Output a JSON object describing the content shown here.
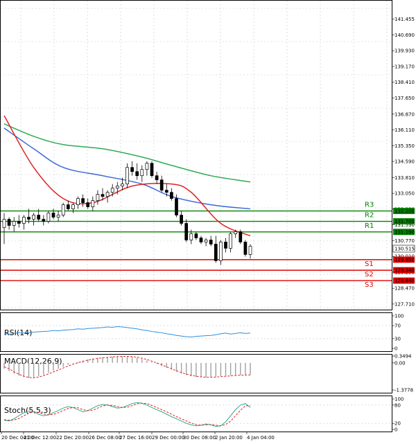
{
  "chart_data": {
    "type": "candlestick",
    "price_axis": {
      "ylim": [
        127.54,
        142.11
      ],
      "ticks": [
        "141.455",
        "140.690",
        "139.930",
        "139.170",
        "138.410",
        "137.650",
        "136.870",
        "136.110",
        "135.350",
        "134.590",
        "133.810",
        "133.050",
        "132.290",
        "131.530",
        "130.770",
        "130.010",
        "129.250",
        "128.470",
        "127.710"
      ]
    },
    "time_labels": [
      "20 Dec 04:00",
      "21 Dec 12:00",
      "22 Dec 20:00",
      "26 Dec 08:00",
      "27 Dec 16:00",
      "29 Dec 00:00",
      "30 Dec 08:00",
      "2 Jan 20:00",
      "4 Jan 04:00"
    ],
    "current_price": "130.515",
    "levels": [
      {
        "name": "R3",
        "value": 132.2,
        "label": "132.200",
        "color": "#008000"
      },
      {
        "name": "R2",
        "value": 131.7,
        "label": "131.700",
        "color": "#008000"
      },
      {
        "name": "R1",
        "value": 131.19,
        "label": "131.190",
        "color": "#008000"
      },
      {
        "name": "S1",
        "value": 129.85,
        "label": "129.850",
        "color": "#e00000"
      },
      {
        "name": "S2",
        "value": 129.34,
        "label": "129.340",
        "color": "#e00000"
      },
      {
        "name": "S3",
        "value": 128.84,
        "label": "128.840",
        "color": "#e00000"
      }
    ],
    "candles": [
      [
        131.4,
        132.1,
        130.6,
        131.8
      ],
      [
        131.8,
        131.9,
        131.3,
        131.5
      ],
      [
        131.5,
        131.9,
        131.2,
        131.7
      ],
      [
        131.7,
        132.0,
        131.4,
        131.6
      ],
      [
        131.6,
        132.0,
        131.3,
        131.9
      ],
      [
        131.9,
        132.3,
        131.6,
        131.8
      ],
      [
        131.8,
        132.1,
        131.5,
        132.0
      ],
      [
        132.0,
        132.3,
        131.7,
        131.8
      ],
      [
        131.8,
        132.0,
        131.5,
        131.7
      ],
      [
        131.7,
        132.2,
        131.6,
        132.1
      ],
      [
        132.1,
        132.3,
        131.8,
        131.9
      ],
      [
        131.9,
        132.2,
        131.7,
        132.0
      ],
      [
        132.0,
        132.6,
        131.9,
        132.5
      ],
      [
        132.5,
        132.7,
        132.2,
        132.3
      ],
      [
        132.3,
        132.6,
        132.1,
        132.5
      ],
      [
        132.5,
        132.9,
        132.3,
        132.8
      ],
      [
        132.8,
        133.0,
        132.4,
        132.6
      ],
      [
        132.6,
        132.8,
        132.3,
        132.4
      ],
      [
        132.4,
        132.9,
        132.2,
        132.7
      ],
      [
        132.7,
        133.2,
        132.5,
        133.0
      ],
      [
        133.0,
        133.3,
        132.7,
        132.9
      ],
      [
        132.9,
        133.2,
        132.6,
        133.1
      ],
      [
        133.1,
        133.5,
        132.9,
        133.3
      ],
      [
        133.3,
        133.6,
        133.0,
        133.4
      ],
      [
        133.4,
        133.8,
        133.2,
        133.5
      ],
      [
        133.5,
        134.5,
        133.3,
        134.3
      ],
      [
        134.3,
        134.6,
        133.9,
        134.1
      ],
      [
        134.1,
        134.5,
        133.7,
        133.9
      ],
      [
        133.9,
        134.4,
        133.6,
        134.2
      ],
      [
        134.2,
        134.6,
        133.9,
        134.5
      ],
      [
        134.5,
        134.6,
        133.8,
        133.9
      ],
      [
        133.9,
        134.1,
        133.5,
        133.7
      ],
      [
        133.7,
        133.9,
        133.1,
        133.2
      ],
      [
        133.2,
        133.5,
        132.9,
        133.1
      ],
      [
        133.1,
        133.3,
        132.7,
        132.8
      ],
      [
        132.8,
        133.0,
        131.9,
        132.0
      ],
      [
        132.0,
        132.2,
        131.5,
        131.6
      ],
      [
        131.6,
        131.8,
        130.7,
        130.8
      ],
      [
        130.8,
        131.3,
        130.6,
        131.1
      ],
      [
        131.1,
        131.2,
        130.8,
        130.9
      ],
      [
        130.9,
        131.0,
        130.6,
        130.7
      ],
      [
        130.7,
        130.9,
        130.5,
        130.8
      ],
      [
        130.8,
        131.0,
        130.5,
        130.6
      ],
      [
        130.6,
        131.0,
        129.7,
        129.8
      ],
      [
        129.8,
        130.8,
        129.6,
        130.7
      ],
      [
        130.7,
        130.9,
        130.2,
        130.4
      ],
      [
        130.4,
        131.2,
        130.2,
        131.1
      ],
      [
        131.1,
        131.3,
        130.9,
        131.2
      ],
      [
        131.2,
        131.3,
        130.6,
        130.7
      ],
      [
        130.7,
        130.8,
        130.0,
        130.1
      ],
      [
        130.1,
        130.6,
        129.9,
        130.5
      ]
    ],
    "ma_fast": [
      [
        0,
        136.8
      ],
      [
        6,
        134.3
      ],
      [
        12,
        132.8
      ],
      [
        18,
        132.6
      ],
      [
        26,
        133.4
      ],
      [
        34,
        133.5
      ],
      [
        38,
        133.1
      ],
      [
        44,
        131.6
      ],
      [
        50,
        131.0
      ]
    ],
    "ma_mid": [
      [
        0,
        136.2
      ],
      [
        6,
        135.2
      ],
      [
        12,
        134.3
      ],
      [
        20,
        133.9
      ],
      [
        28,
        133.5
      ],
      [
        34,
        132.9
      ],
      [
        42,
        132.5
      ],
      [
        50,
        132.3
      ]
    ],
    "ma_slow": [
      [
        0,
        136.4
      ],
      [
        6,
        135.8
      ],
      [
        12,
        135.4
      ],
      [
        20,
        135.2
      ],
      [
        28,
        134.8
      ],
      [
        34,
        134.4
      ],
      [
        42,
        133.9
      ],
      [
        50,
        133.6
      ]
    ],
    "indicators": [
      {
        "label": "RSI(14)",
        "ticks": [
          "100",
          "70",
          "30",
          "0"
        ]
      },
      {
        "label": "MACD(12,26,9)",
        "ticks": [
          "0.3494",
          "0.00",
          "-1.3778"
        ]
      },
      {
        "label": "Stoch(5,5,3)",
        "ticks": [
          "100",
          "80",
          "20",
          "0"
        ]
      }
    ],
    "rsi": [
      45,
      44,
      46,
      48,
      47,
      49,
      50,
      51,
      52,
      53,
      55,
      54,
      56,
      57,
      58,
      60,
      59,
      61,
      62,
      63,
      64,
      66,
      65,
      67,
      66,
      64,
      62,
      60,
      57,
      55,
      52,
      50,
      48,
      45,
      43,
      40,
      38,
      36,
      35,
      37,
      38,
      39,
      40,
      42,
      45,
      47,
      44,
      46,
      48,
      46,
      47
    ],
    "macd_hist": [
      -0.3,
      -0.42,
      -0.55,
      -0.65,
      -0.72,
      -0.76,
      -0.73,
      -0.68,
      -0.6,
      -0.5,
      -0.4,
      -0.3,
      -0.2,
      -0.1,
      -0.02,
      0.05,
      0.12,
      0.18,
      0.22,
      0.26,
      0.28,
      0.3,
      0.32,
      0.33,
      0.33,
      0.32,
      0.3,
      0.26,
      0.2,
      0.12,
      0.04,
      -0.05,
      -0.15,
      -0.25,
      -0.35,
      -0.45,
      -0.55,
      -0.62,
      -0.68,
      -0.72,
      -0.73,
      -0.74,
      -0.72,
      -0.7,
      -0.68,
      -0.66,
      -0.64,
      -0.63,
      -0.62,
      -0.62,
      -0.6
    ],
    "macd_signal": [
      -0.2,
      -0.3,
      -0.45,
      -0.58,
      -0.68,
      -0.74,
      -0.76,
      -0.72,
      -0.65,
      -0.56,
      -0.46,
      -0.36,
      -0.26,
      -0.16,
      -0.07,
      0.01,
      0.08,
      0.14,
      0.19,
      0.23,
      0.26,
      0.28,
      0.3,
      0.32,
      0.33,
      0.33,
      0.32,
      0.29,
      0.24,
      0.17,
      0.09,
      0.0,
      -0.1,
      -0.2,
      -0.3,
      -0.4,
      -0.49,
      -0.57,
      -0.63,
      -0.68,
      -0.71,
      -0.73,
      -0.73,
      -0.72,
      -0.7,
      -0.68,
      -0.66,
      -0.64,
      -0.63,
      -0.62,
      -0.61
    ],
    "stoch_k": [
      30,
      28,
      35,
      45,
      55,
      60,
      58,
      50,
      45,
      48,
      55,
      62,
      70,
      75,
      72,
      65,
      58,
      62,
      70,
      78,
      82,
      80,
      75,
      70,
      72,
      78,
      85,
      88,
      86,
      80,
      72,
      65,
      58,
      50,
      42,
      35,
      28,
      20,
      15,
      12,
      14,
      18,
      15,
      10,
      12,
      25,
      45,
      65,
      80,
      85,
      72
    ],
    "stoch_d": [
      32,
      30,
      31,
      36,
      45,
      53,
      58,
      56,
      51,
      48,
      49,
      55,
      62,
      69,
      72,
      71,
      65,
      62,
      63,
      70,
      77,
      80,
      79,
      75,
      72,
      73,
      78,
      84,
      86,
      85,
      79,
      72,
      65,
      58,
      50,
      42,
      35,
      28,
      21,
      16,
      14,
      15,
      16,
      14,
      12,
      16,
      27,
      45,
      63,
      77,
      79
    ]
  }
}
